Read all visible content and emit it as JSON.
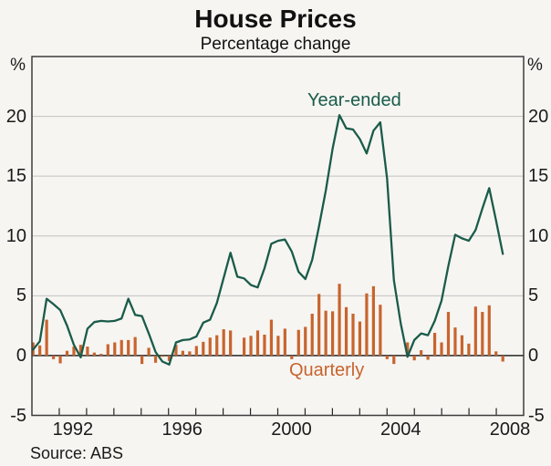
{
  "title": "House Prices",
  "subtitle": "Percentage change",
  "source": "Source: ABS",
  "axes": {
    "unit_left": "%",
    "unit_right": "%",
    "ylim": [
      -5,
      25
    ],
    "y_ticks": [
      20,
      15,
      10,
      5,
      0,
      -5
    ],
    "y_gridlines": [
      20,
      15,
      10,
      5
    ],
    "x_year_ticks": [
      1992,
      1993,
      1994,
      1995,
      1996,
      1997,
      1998,
      1999,
      2000,
      2001,
      2002,
      2003,
      2004,
      2005,
      2006,
      2007,
      2008
    ],
    "x_year_labels": [
      1992,
      1996,
      2000,
      2004,
      2008
    ],
    "x_range_years": [
      1991,
      2009
    ]
  },
  "series_labels": {
    "year_ended": "Year-ended",
    "quarterly": "Quarterly"
  },
  "colors": {
    "line": "#1a5b49",
    "bar": "#c8642e",
    "grid": "#c2c2bf",
    "frame": "#3d3d3d",
    "zero_line": "#262626",
    "tick": "#262626",
    "background": "#f6f5f2",
    "axis_text": "#1a1a1a"
  },
  "chart_data": {
    "type": "bar+line",
    "title": "House Prices",
    "subtitle": "Percentage change",
    "ylabel": "%",
    "ylim": [
      -5,
      25
    ],
    "grid": true,
    "x_quarters": [
      "1991 Q1",
      "1991 Q2",
      "1991 Q3",
      "1991 Q4",
      "1992 Q1",
      "1992 Q2",
      "1992 Q3",
      "1992 Q4",
      "1993 Q1",
      "1993 Q2",
      "1993 Q3",
      "1993 Q4",
      "1994 Q1",
      "1994 Q2",
      "1994 Q3",
      "1994 Q4",
      "1995 Q1",
      "1995 Q2",
      "1995 Q3",
      "1995 Q4",
      "1996 Q1",
      "1996 Q2",
      "1996 Q3",
      "1996 Q4",
      "1997 Q1",
      "1997 Q2",
      "1997 Q3",
      "1997 Q4",
      "1998 Q1",
      "1998 Q2",
      "1998 Q3",
      "1998 Q4",
      "1999 Q1",
      "1999 Q2",
      "1999 Q3",
      "1999 Q4",
      "2000 Q1",
      "2000 Q2",
      "2000 Q3",
      "2000 Q4",
      "2001 Q1",
      "2001 Q2",
      "2001 Q3",
      "2001 Q4",
      "2002 Q1",
      "2002 Q2",
      "2002 Q3",
      "2002 Q4",
      "2003 Q1",
      "2003 Q2",
      "2003 Q3",
      "2003 Q4",
      "2004 Q1",
      "2004 Q2",
      "2004 Q3",
      "2004 Q4",
      "2005 Q1",
      "2005 Q2",
      "2005 Q3",
      "2005 Q4",
      "2006 Q1",
      "2006 Q2",
      "2006 Q3",
      "2006 Q4",
      "2007 Q1",
      "2007 Q2",
      "2007 Q3",
      "2007 Q4",
      "2008 Q1",
      "2008 Q2"
    ],
    "series": [
      {
        "name": "Year-ended",
        "type": "line",
        "values": [
          0.5,
          1.2,
          4.75,
          4.3,
          3.8,
          2.5,
          0.9,
          -0.15,
          2.25,
          2.8,
          2.9,
          2.85,
          2.9,
          3.1,
          4.75,
          3.4,
          3.3,
          1.85,
          0.3,
          -0.5,
          -0.75,
          1.1,
          1.3,
          1.35,
          1.6,
          2.75,
          3.0,
          4.4,
          6.5,
          8.6,
          6.6,
          6.45,
          5.9,
          5.7,
          7.3,
          9.35,
          9.6,
          9.7,
          8.7,
          7.0,
          6.4,
          8.0,
          10.8,
          13.8,
          17.3,
          20.1,
          19.0,
          18.9,
          18.1,
          16.9,
          18.8,
          19.5,
          14.8,
          6.3,
          2.7,
          -0.1,
          1.3,
          1.85,
          1.7,
          2.9,
          4.6,
          7.5,
          10.1,
          9.8,
          9.6,
          10.5,
          12.3,
          14.0,
          11.3,
          8.5
        ]
      },
      {
        "name": "Quarterly",
        "type": "bar",
        "values": [
          1.1,
          0.85,
          3.0,
          -0.3,
          -0.65,
          0.4,
          0.75,
          0.9,
          0.75,
          0.25,
          0.15,
          0.95,
          1.1,
          1.3,
          1.3,
          1.55,
          -0.7,
          0.65,
          -0.6,
          -0.1,
          -0.45,
          0.9,
          0.4,
          0.35,
          0.8,
          1.15,
          1.5,
          1.7,
          2.2,
          2.1,
          0.0,
          1.5,
          1.65,
          2.1,
          1.75,
          3.0,
          1.65,
          2.25,
          -0.3,
          2.15,
          2.4,
          3.5,
          5.15,
          3.75,
          3.7,
          6.0,
          4.05,
          3.5,
          2.85,
          5.2,
          5.8,
          4.25,
          -0.3,
          -0.7,
          0.0,
          1.1,
          -0.4,
          0.45,
          -0.35,
          1.9,
          1.1,
          3.65,
          2.35,
          1.7,
          1.0,
          4.1,
          3.65,
          4.2,
          0.35,
          -0.5
        ]
      }
    ],
    "legend_position": "inline-annotations"
  }
}
